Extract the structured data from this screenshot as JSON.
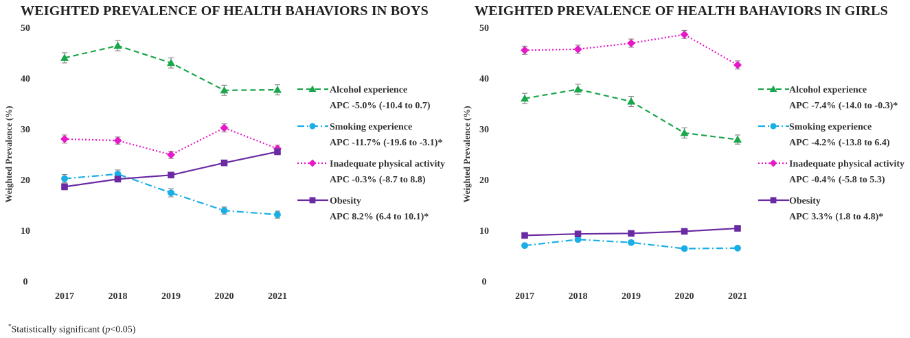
{
  "footnote": {
    "star": "*",
    "text_before": "Statistically significant (",
    "p": "p",
    "text_after": "<0.05)"
  },
  "colors": {
    "alcohol": "#1aa64b",
    "smoking": "#19aee6",
    "inactivity": "#e619c6",
    "obesity": "#6a2aa3"
  },
  "chart_data": [
    {
      "type": "line",
      "title": "WEIGHTED  PREVALENCE OF HEALTH BAHAVIORS IN BOYS",
      "xlabel": "",
      "ylabel": "Weighted Prevalence (%)",
      "x": [
        "2017",
        "2018",
        "2019",
        "2020",
        "2021"
      ],
      "ylim": [
        0,
        50
      ],
      "yticks": [
        "0",
        "10",
        "20",
        "30",
        "40",
        "50"
      ],
      "grid": false,
      "legend_position": "right",
      "series": [
        {
          "name": "Alcohol experience",
          "apc": "APC -5.0% (-10.4 to 0.7)",
          "key": "alcohol",
          "marker": "triangle",
          "dash": "dashed",
          "values": [
            44.0,
            46.4,
            43.0,
            37.6,
            37.7
          ],
          "err": [
            1.0,
            1.0,
            1.0,
            1.0,
            1.0
          ]
        },
        {
          "name": "Smoking experience",
          "apc": "APC -11.7% (-19.6 to -3.1)*",
          "key": "smoking",
          "marker": "circle",
          "dash": "dashdot",
          "values": [
            20.2,
            21.1,
            17.4,
            13.9,
            13.1
          ],
          "err": [
            0.8,
            0.8,
            0.8,
            0.7,
            0.7
          ]
        },
        {
          "name": "Inadequate physical activity",
          "apc": "APC -0.3% (-8.7 to 8.8)",
          "key": "inactivity",
          "marker": "diamond",
          "dash": "dotted",
          "values": [
            28.0,
            27.7,
            24.9,
            30.2,
            26.1
          ],
          "err": [
            0.8,
            0.7,
            0.7,
            0.8,
            0.7
          ]
        },
        {
          "name": "Obesity",
          "apc": "APC 8.2% (6.4 to 10.1)*",
          "key": "obesity",
          "marker": "square",
          "dash": "solid",
          "values": [
            18.6,
            20.1,
            20.9,
            23.3,
            25.5
          ],
          "err": [
            0.6,
            0.5,
            0.5,
            0.5,
            0.6
          ]
        }
      ]
    },
    {
      "type": "line",
      "title": "WEIGHTED  PREVALENCE OF HEALTH BAHAVIORS IN GIRLS",
      "xlabel": "",
      "ylabel": "Weighted Prevalence (%)",
      "x": [
        "2017",
        "2018",
        "2019",
        "2020",
        "2021"
      ],
      "ylim": [
        0,
        50
      ],
      "yticks": [
        "0",
        "10",
        "20",
        "30",
        "40",
        "50"
      ],
      "grid": false,
      "legend_position": "right",
      "series": [
        {
          "name": "Alcohol experience",
          "apc": "APC -7.4% (-14.0 to -0.3)*",
          "key": "alcohol",
          "marker": "triangle",
          "dash": "dashed",
          "values": [
            36.0,
            37.8,
            35.4,
            29.2,
            27.9
          ],
          "err": [
            1.0,
            1.0,
            1.0,
            1.0,
            0.9
          ]
        },
        {
          "name": "Smoking experience",
          "apc": "APC -4.2% (-13.8 to 6.4)",
          "key": "smoking",
          "marker": "circle",
          "dash": "dashdot",
          "values": [
            7.0,
            8.2,
            7.6,
            6.4,
            6.5
          ],
          "err": [
            0.4,
            0.4,
            0.4,
            0.3,
            0.3
          ]
        },
        {
          "name": "Inadequate physical activity",
          "apc": "APC -0.4% (-5.8 to 5.3)",
          "key": "inactivity",
          "marker": "diamond",
          "dash": "dotted",
          "values": [
            45.5,
            45.7,
            46.9,
            48.6,
            42.6
          ],
          "err": [
            0.8,
            0.8,
            0.8,
            0.8,
            0.8
          ]
        },
        {
          "name": "Obesity",
          "apc": "APC 3.3% (1.8 to 4.8)*",
          "key": "obesity",
          "marker": "square",
          "dash": "solid",
          "values": [
            9.0,
            9.3,
            9.4,
            9.8,
            10.4
          ],
          "err": [
            0.3,
            0.3,
            0.3,
            0.3,
            0.3
          ]
        }
      ]
    }
  ]
}
